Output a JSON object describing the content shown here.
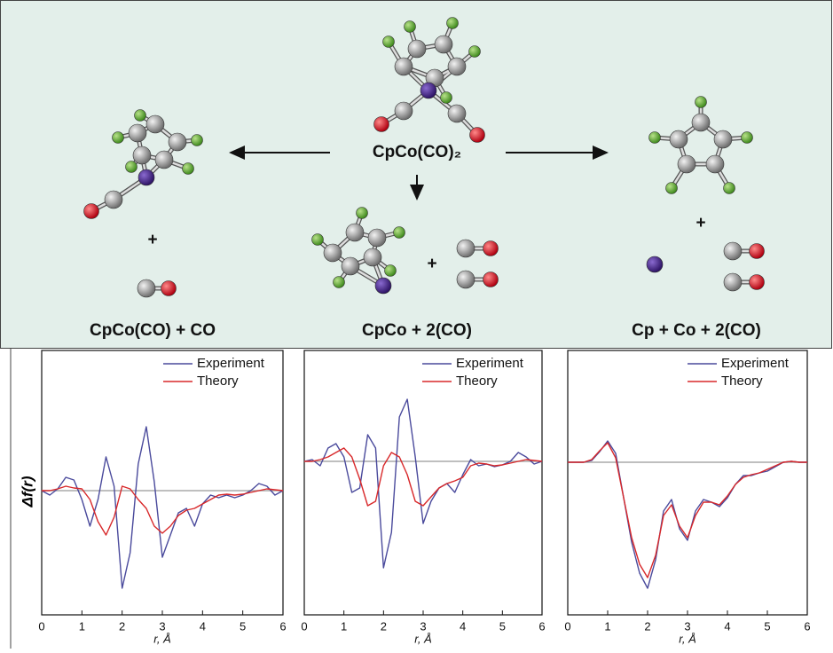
{
  "diagram": {
    "center_label": "CpCo(CO)₂",
    "products": [
      "CpCo(CO) + CO",
      "CpCo + 2(CO)",
      "Cp + Co + 2(CO)"
    ],
    "plus_signs": [
      "+",
      "+",
      "+"
    ]
  },
  "chart_data": [
    {
      "type": "line",
      "ylabel": "Δf(r)",
      "xlabel": "r, Å",
      "xlim": [
        0,
        6
      ],
      "xticks": [
        0,
        1,
        2,
        3,
        4,
        5,
        6
      ],
      "ylim": [
        -1.4,
        1.58
      ],
      "baseline": 0,
      "x": [
        0,
        0.2,
        0.4,
        0.6,
        0.8,
        1.0,
        1.2,
        1.4,
        1.6,
        1.8,
        2.0,
        2.2,
        2.4,
        2.6,
        2.8,
        3.0,
        3.2,
        3.4,
        3.6,
        3.8,
        4.0,
        4.2,
        4.4,
        4.6,
        4.8,
        5.0,
        5.2,
        5.4,
        5.6,
        5.8,
        6.0
      ],
      "series": [
        {
          "name": "Experiment",
          "color": "#4a4a9c",
          "values": [
            0,
            -0.05,
            0.02,
            0.15,
            0.12,
            -0.1,
            -0.4,
            -0.1,
            0.38,
            0.05,
            -1.1,
            -0.7,
            0.3,
            0.72,
            0.1,
            -0.75,
            -0.5,
            -0.25,
            -0.2,
            -0.4,
            -0.15,
            -0.05,
            -0.08,
            -0.05,
            -0.08,
            -0.05,
            0,
            0.08,
            0.05,
            -0.05,
            0
          ]
        },
        {
          "name": "Theory",
          "color": "#d8282a",
          "values": [
            0,
            0,
            0.02,
            0.05,
            0.03,
            0.02,
            -0.1,
            -0.35,
            -0.5,
            -0.3,
            0.05,
            0.02,
            -0.1,
            -0.2,
            -0.4,
            -0.48,
            -0.4,
            -0.28,
            -0.22,
            -0.2,
            -0.15,
            -0.1,
            -0.05,
            -0.04,
            -0.05,
            -0.04,
            -0.02,
            0,
            0.02,
            0.01,
            0
          ]
        }
      ]
    },
    {
      "type": "line",
      "xlabel": "r, Å",
      "xlim": [
        0,
        6
      ],
      "xticks": [
        0,
        1,
        2,
        3,
        4,
        5,
        6
      ],
      "ylim": [
        -1.73,
        1.25
      ],
      "baseline": 0,
      "x": [
        0,
        0.2,
        0.4,
        0.6,
        0.8,
        1.0,
        1.2,
        1.4,
        1.6,
        1.8,
        2.0,
        2.2,
        2.4,
        2.6,
        2.8,
        3.0,
        3.2,
        3.4,
        3.6,
        3.8,
        4.0,
        4.2,
        4.4,
        4.6,
        4.8,
        5.0,
        5.2,
        5.4,
        5.6,
        5.8,
        6.0
      ],
      "series": [
        {
          "name": "Experiment",
          "color": "#4a4a9c",
          "values": [
            0,
            0.02,
            -0.05,
            0.15,
            0.2,
            0.05,
            -0.35,
            -0.3,
            0.3,
            0.15,
            -1.2,
            -0.8,
            0.5,
            0.7,
            0.05,
            -0.7,
            -0.45,
            -0.3,
            -0.25,
            -0.35,
            -0.15,
            0.02,
            -0.05,
            -0.03,
            -0.06,
            -0.04,
            0,
            0.1,
            0.05,
            -0.03,
            0
          ]
        },
        {
          "name": "Theory",
          "color": "#d8282a",
          "values": [
            0,
            0,
            0.02,
            0.05,
            0.1,
            0.15,
            0.05,
            -0.2,
            -0.5,
            -0.45,
            -0.05,
            0.1,
            0.05,
            -0.15,
            -0.45,
            -0.5,
            -0.4,
            -0.3,
            -0.25,
            -0.22,
            -0.18,
            -0.05,
            -0.02,
            -0.03,
            -0.05,
            -0.04,
            -0.02,
            0,
            0.02,
            0.01,
            0
          ]
        }
      ]
    },
    {
      "type": "line",
      "xlabel": "r, Å",
      "xlim": [
        0,
        6
      ],
      "xticks": [
        0,
        1,
        2,
        3,
        4,
        5,
        6
      ],
      "ylim": [
        -1.72,
        1.26
      ],
      "baseline": 0,
      "x": [
        0,
        0.2,
        0.4,
        0.6,
        0.8,
        1.0,
        1.2,
        1.4,
        1.6,
        1.8,
        2.0,
        2.2,
        2.4,
        2.6,
        2.8,
        3.0,
        3.2,
        3.4,
        3.6,
        3.8,
        4.0,
        4.2,
        4.4,
        4.6,
        4.8,
        5.0,
        5.2,
        5.4,
        5.6,
        5.8,
        6.0
      ],
      "series": [
        {
          "name": "Experiment",
          "color": "#4a4a9c",
          "values": [
            0,
            0,
            0,
            0.02,
            0.12,
            0.24,
            0.1,
            -0.4,
            -0.9,
            -1.25,
            -1.42,
            -1.1,
            -0.55,
            -0.42,
            -0.75,
            -0.88,
            -0.55,
            -0.42,
            -0.45,
            -0.5,
            -0.4,
            -0.25,
            -0.15,
            -0.15,
            -0.12,
            -0.1,
            -0.05,
            0,
            0.01,
            0,
            0
          ]
        },
        {
          "name": "Theory",
          "color": "#d8282a",
          "values": [
            0,
            0,
            0,
            0.03,
            0.13,
            0.22,
            0.05,
            -0.4,
            -0.85,
            -1.15,
            -1.3,
            -1.05,
            -0.6,
            -0.48,
            -0.72,
            -0.85,
            -0.6,
            -0.45,
            -0.45,
            -0.48,
            -0.38,
            -0.25,
            -0.17,
            -0.14,
            -0.12,
            -0.08,
            -0.04,
            0,
            0.01,
            0,
            0
          ]
        }
      ]
    }
  ]
}
